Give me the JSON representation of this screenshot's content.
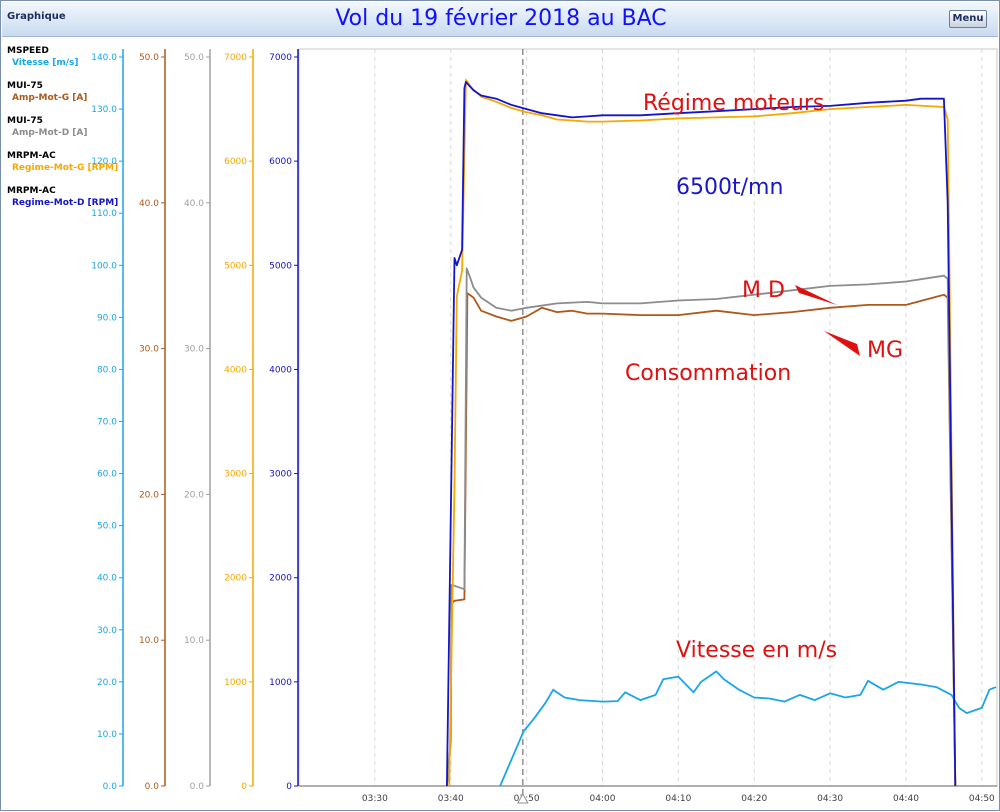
{
  "window": {
    "panel_name": "Graphique",
    "menu_label": "Menu"
  },
  "legend": [
    {
      "source": "MSPEED",
      "channel": "Vitesse [m/s]",
      "color": "#1aa6e6"
    },
    {
      "source": "MUI-75",
      "channel": "Amp-Mot-G [A]",
      "color": "#b0581a"
    },
    {
      "source": "MUI-75",
      "channel": "Amp-Mot-D [A]",
      "color": "#8c8c8c"
    },
    {
      "source": "MRPM-AC",
      "channel": "Regime-Mot-G [RPM]",
      "color": "#f5a800"
    },
    {
      "source": "MRPM-AC",
      "channel": "Regime-Mot-D [RPM]",
      "color": "#1414c8"
    }
  ],
  "chart_data": {
    "type": "line",
    "title": "Vol du 19 février 2018 au BAC",
    "annotations": [
      {
        "text": "Régime moteurs",
        "color": "#e01010"
      },
      {
        "text": "6500t/mn",
        "color": "#1818c8"
      },
      {
        "text": "M D",
        "color": "#e01010"
      },
      {
        "text": "MG",
        "color": "#e01010"
      },
      {
        "text": "Consommation",
        "color": "#e01010"
      },
      {
        "text": "Vitesse en m/s",
        "color": "#e01010"
      }
    ],
    "x_axis": {
      "ticks": [
        "03:30",
        "03:40",
        "03:50",
        "04:00",
        "04:10",
        "04:20",
        "04:30",
        "04:40",
        "04:50"
      ],
      "range": [
        "03:20",
        "04:52"
      ],
      "cursor": "03:49.5"
    },
    "y_axes": [
      {
        "series": "Vitesse [m/s]",
        "color": "#1aa6e6",
        "range": [
          0,
          140
        ],
        "ticks": [
          "0.0",
          "10.0",
          "20.0",
          "30.0",
          "40.0",
          "50.0",
          "60.0",
          "70.0",
          "80.0",
          "90.0",
          "100.0",
          "110.0",
          "120.0",
          "130.0",
          "140.0"
        ]
      },
      {
        "series": "Amp-Mot-G [A]",
        "color": "#b0581a",
        "range": [
          0,
          50
        ],
        "ticks": [
          "0.0",
          "10.0",
          "20.0",
          "30.0",
          "40.0",
          "50.0"
        ]
      },
      {
        "series": "Amp-Mot-D [A]",
        "color": "#a0a0a0",
        "range": [
          0,
          50
        ],
        "ticks": [
          "0.0",
          "10.0",
          "20.0",
          "30.0",
          "40.0",
          "50.0"
        ]
      },
      {
        "series": "Regime-Mot-G [RPM]",
        "color": "#f5a800",
        "range": [
          0,
          7000
        ],
        "ticks": [
          "0",
          "1000",
          "2000",
          "3000",
          "4000",
          "5000",
          "6000",
          "7000"
        ]
      },
      {
        "series": "Regime-Mot-D [RPM]",
        "color": "#1414c8",
        "range": [
          0,
          7000
        ],
        "ticks": [
          "0",
          "1000",
          "2000",
          "3000",
          "4000",
          "5000",
          "6000",
          "7000"
        ]
      }
    ],
    "series": [
      {
        "name": "Vitesse [m/s]",
        "axis": 0,
        "color": "#1aa6e6",
        "x": [
          "03:46.5",
          "03:49.6",
          "03:51.0",
          "03:52.5",
          "03:53.5",
          "03:55",
          "03:57",
          "04:00",
          "04:02",
          "04:03",
          "04:05",
          "04:07",
          "04:08",
          "04:10",
          "04:11",
          "04:12",
          "04:13",
          "04:15",
          "04:16",
          "04:18",
          "04:20",
          "04:22",
          "04:24",
          "04:26",
          "04:28",
          "04:30",
          "04:32",
          "04:34",
          "04:35",
          "04:37",
          "04:39",
          "04:42",
          "04:44",
          "04:46",
          "04:47",
          "04:48",
          "04:50",
          "04:51",
          "04:52"
        ],
        "y": [
          0,
          10.5,
          13,
          16,
          18.5,
          17,
          16.5,
          16.2,
          16.3,
          18,
          16.5,
          17.5,
          20.5,
          21,
          19.5,
          18,
          20,
          22,
          20.5,
          18.5,
          17,
          16.8,
          16.2,
          17.5,
          16.5,
          17.8,
          17,
          17.5,
          20.2,
          18.5,
          20,
          19.5,
          19,
          17.5,
          15,
          14,
          15,
          18.5,
          19
        ]
      },
      {
        "name": "Amp-Mot-G [A]",
        "axis": 1,
        "color": "#b0581a",
        "x": [
          "03:39.5",
          "03:40.0",
          "03:40.1",
          "03:40.5",
          "03:41.8",
          "03:42.2",
          "03:43",
          "03:44",
          "03:46",
          "03:48",
          "03:50",
          "03:52",
          "03:54",
          "03:56",
          "03:58",
          "04:00",
          "04:05",
          "04:10",
          "04:15",
          "04:20",
          "04:25",
          "04:30",
          "04:35",
          "04:40",
          "04:45",
          "04:45.5",
          "04:46.5"
        ],
        "y": [
          0,
          3,
          12.5,
          12.7,
          12.8,
          33.8,
          33.5,
          32.6,
          32.2,
          31.9,
          32.2,
          32.8,
          32.5,
          32.6,
          32.4,
          32.4,
          32.3,
          32.3,
          32.6,
          32.3,
          32.5,
          32.8,
          33,
          33,
          33.7,
          33.5,
          0
        ]
      },
      {
        "name": "Amp-Mot-D [A]",
        "axis": 2,
        "color": "#8c8c8c",
        "x": [
          "03:39.5",
          "03:40.0",
          "03:40.1",
          "03:41.8",
          "03:42.1",
          "03:42.6",
          "03:43",
          "03:44",
          "03:46",
          "03:48",
          "03:50",
          "03:54",
          "03:58",
          "04:00",
          "04:05",
          "04:10",
          "04:15",
          "04:20",
          "04:25",
          "04:30",
          "04:35",
          "04:40",
          "04:45",
          "04:45.5",
          "04:46.5"
        ],
        "y": [
          0,
          3,
          13.8,
          13.5,
          35.5,
          34.8,
          34.2,
          33.5,
          32.8,
          32.6,
          32.8,
          33.1,
          33.2,
          33.1,
          33.1,
          33.3,
          33.4,
          33.7,
          34.0,
          34.3,
          34.4,
          34.6,
          35.0,
          34.8,
          0
        ]
      },
      {
        "name": "Regime-Mot-G [RPM]",
        "axis": 3,
        "color": "#f5a800",
        "x": [
          "03:39.8",
          "03:40.5",
          "03:40.8",
          "03:41.5",
          "03:42.0",
          "03:42.8",
          "03:44",
          "03:46",
          "03:48",
          "03:50",
          "03:52",
          "03:54",
          "03:56",
          "03:58",
          "04:00",
          "04:05",
          "04:10",
          "04:15",
          "04:20",
          "04:25",
          "04:30",
          "04:35",
          "04:40",
          "04:45",
          "04:45.5",
          "04:46.5"
        ],
        "y": [
          0,
          2900,
          4700,
          4950,
          6780,
          6700,
          6620,
          6570,
          6510,
          6470,
          6440,
          6400,
          6390,
          6380,
          6380,
          6390,
          6410,
          6420,
          6430,
          6460,
          6500,
          6520,
          6540,
          6520,
          6400,
          0
        ]
      },
      {
        "name": "Regime-Mot-D [RPM]",
        "axis": 4,
        "color": "#1414c8",
        "x": [
          "03:39.5",
          "03:40.5",
          "03:40.8",
          "03:41.5",
          "03:41.8",
          "03:42.0",
          "03:43",
          "03:44",
          "03:46",
          "03:48",
          "03:50",
          "03:52",
          "03:54",
          "03:56",
          "03:58",
          "04:00",
          "04:05",
          "04:10",
          "04:15",
          "04:20",
          "04:25",
          "04:30",
          "04:35",
          "04:40",
          "04:42",
          "04:45",
          "04:45.5",
          "04:46.5"
        ],
        "y": [
          0,
          5070,
          5000,
          5150,
          6700,
          6760,
          6680,
          6630,
          6600,
          6540,
          6500,
          6460,
          6440,
          6420,
          6430,
          6440,
          6440,
          6460,
          6480,
          6500,
          6520,
          6530,
          6560,
          6580,
          6600,
          6600,
          5600,
          0
        ]
      }
    ]
  }
}
